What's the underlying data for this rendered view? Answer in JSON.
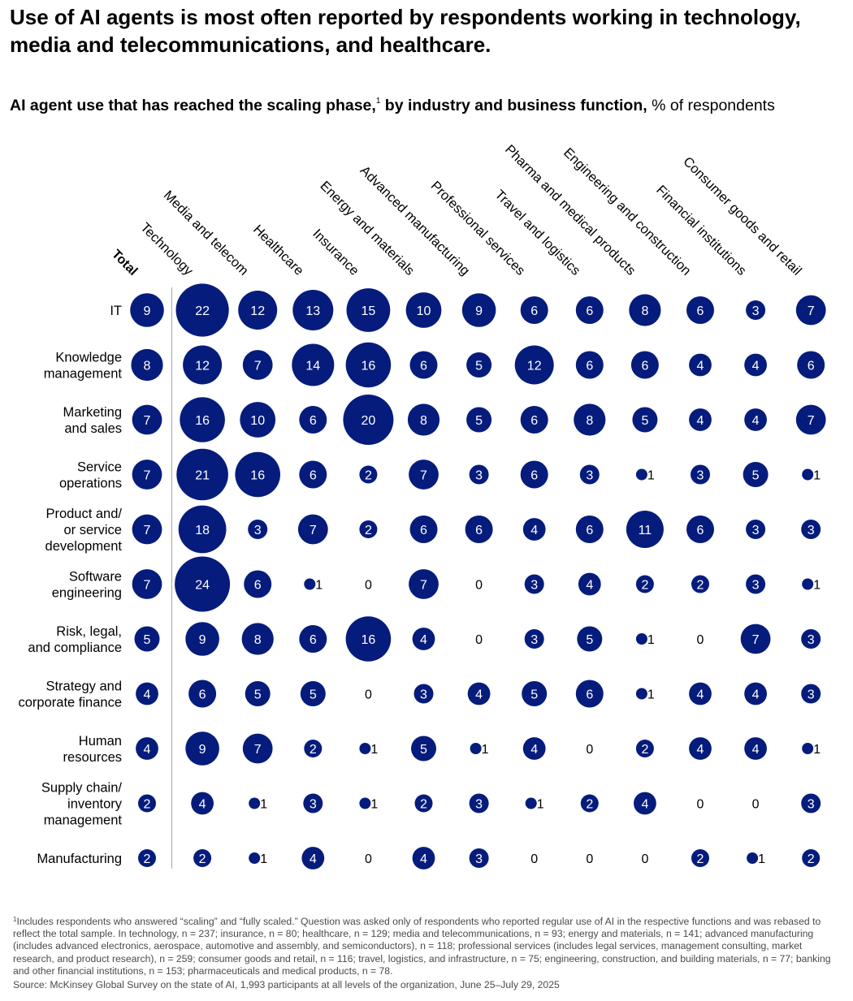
{
  "header": {
    "title": "Use of AI agents is most often reported by respondents working in technology, media and telecommunications, and healthcare.",
    "subtitle_bold": "AI agent use that has reached the scaling phase,",
    "subtitle_sup": "1",
    "subtitle_bold2": " by industry and business function,",
    "subtitle_unit": " % of respondents"
  },
  "colors": {
    "bubble": "#051c7c",
    "bubble_text": "#ffffff",
    "label_text": "#000000",
    "divider": "#a8a8a8"
  },
  "chart_data": {
    "type": "bubble-matrix",
    "title": "AI agent use that has reached the scaling phase, by industry and business function",
    "unit": "% of respondents",
    "columns": [
      "Total",
      "Technology",
      "Media and telecom",
      "Healthcare",
      "Insurance",
      "Energy and materials",
      "Advanced manufacturing",
      "Professional services",
      "Travel and logistics",
      "Pharma and medical products",
      "Engineering and construction",
      "Financial institutions",
      "Consumer goods and retail"
    ],
    "rows": [
      {
        "label": [
          "IT"
        ],
        "values": [
          9,
          22,
          12,
          13,
          15,
          10,
          9,
          6,
          6,
          8,
          6,
          3,
          7
        ]
      },
      {
        "label": [
          "Knowledge",
          "management"
        ],
        "values": [
          8,
          12,
          7,
          14,
          16,
          6,
          5,
          12,
          6,
          6,
          4,
          4,
          6
        ]
      },
      {
        "label": [
          "Marketing",
          "and sales"
        ],
        "values": [
          7,
          16,
          10,
          6,
          20,
          8,
          5,
          6,
          8,
          5,
          4,
          4,
          7
        ]
      },
      {
        "label": [
          "Service",
          "operations"
        ],
        "values": [
          7,
          21,
          16,
          6,
          2,
          7,
          3,
          6,
          3,
          1,
          3,
          5,
          1
        ]
      },
      {
        "label": [
          "Product and/",
          "or service",
          "development"
        ],
        "values": [
          7,
          18,
          3,
          7,
          2,
          6,
          6,
          4,
          6,
          11,
          6,
          3,
          3
        ]
      },
      {
        "label": [
          "Software",
          "engineering"
        ],
        "values": [
          7,
          24,
          6,
          1,
          0,
          7,
          0,
          3,
          4,
          2,
          2,
          3,
          1
        ]
      },
      {
        "label": [
          "Risk, legal,",
          "and compliance"
        ],
        "values": [
          5,
          9,
          8,
          6,
          16,
          4,
          0,
          3,
          5,
          1,
          0,
          7,
          3
        ]
      },
      {
        "label": [
          "Strategy and",
          "corporate finance"
        ],
        "values": [
          4,
          6,
          5,
          5,
          0,
          3,
          4,
          5,
          6,
          1,
          4,
          4,
          3
        ]
      },
      {
        "label": [
          "Human",
          "resources"
        ],
        "values": [
          4,
          9,
          7,
          2,
          1,
          5,
          1,
          4,
          0,
          2,
          4,
          4,
          1
        ]
      },
      {
        "label": [
          "Supply chain/",
          "inventory",
          "management"
        ],
        "values": [
          2,
          4,
          1,
          3,
          1,
          2,
          3,
          1,
          2,
          4,
          0,
          0,
          3
        ]
      },
      {
        "label": [
          "Manufacturing"
        ],
        "values": [
          2,
          2,
          1,
          4,
          0,
          4,
          3,
          0,
          0,
          0,
          2,
          1,
          2
        ]
      }
    ]
  },
  "footnote": {
    "marker": "1",
    "text": "Includes respondents who answered “scaling” and “fully scaled.” Question was asked only of respondents who reported regular use of AI in the respective functions and was rebased to reflect the total sample. In technology, n = 237; insurance, n = 80; healthcare, n = 129; media and telecommunications, n = 93; energy and materials, n = 141; advanced manufacturing (includes advanced electronics, aerospace, automotive and assembly, and semiconductors), n = 118; professional services (includes legal services, management consulting, market research, and product research), n = 259; consumer goods and retail, n = 116; travel, logistics, and infrastructure, n = 75; engineering, construction, and building materials, n = 77; banking and other financial institutions, n = 153; pharmaceuticals and medical products, n = 78.",
    "source": "Source: McKinsey Global Survey on the state of AI, 1,993 participants at all levels of the organization, June 25–July 29, 2025"
  }
}
